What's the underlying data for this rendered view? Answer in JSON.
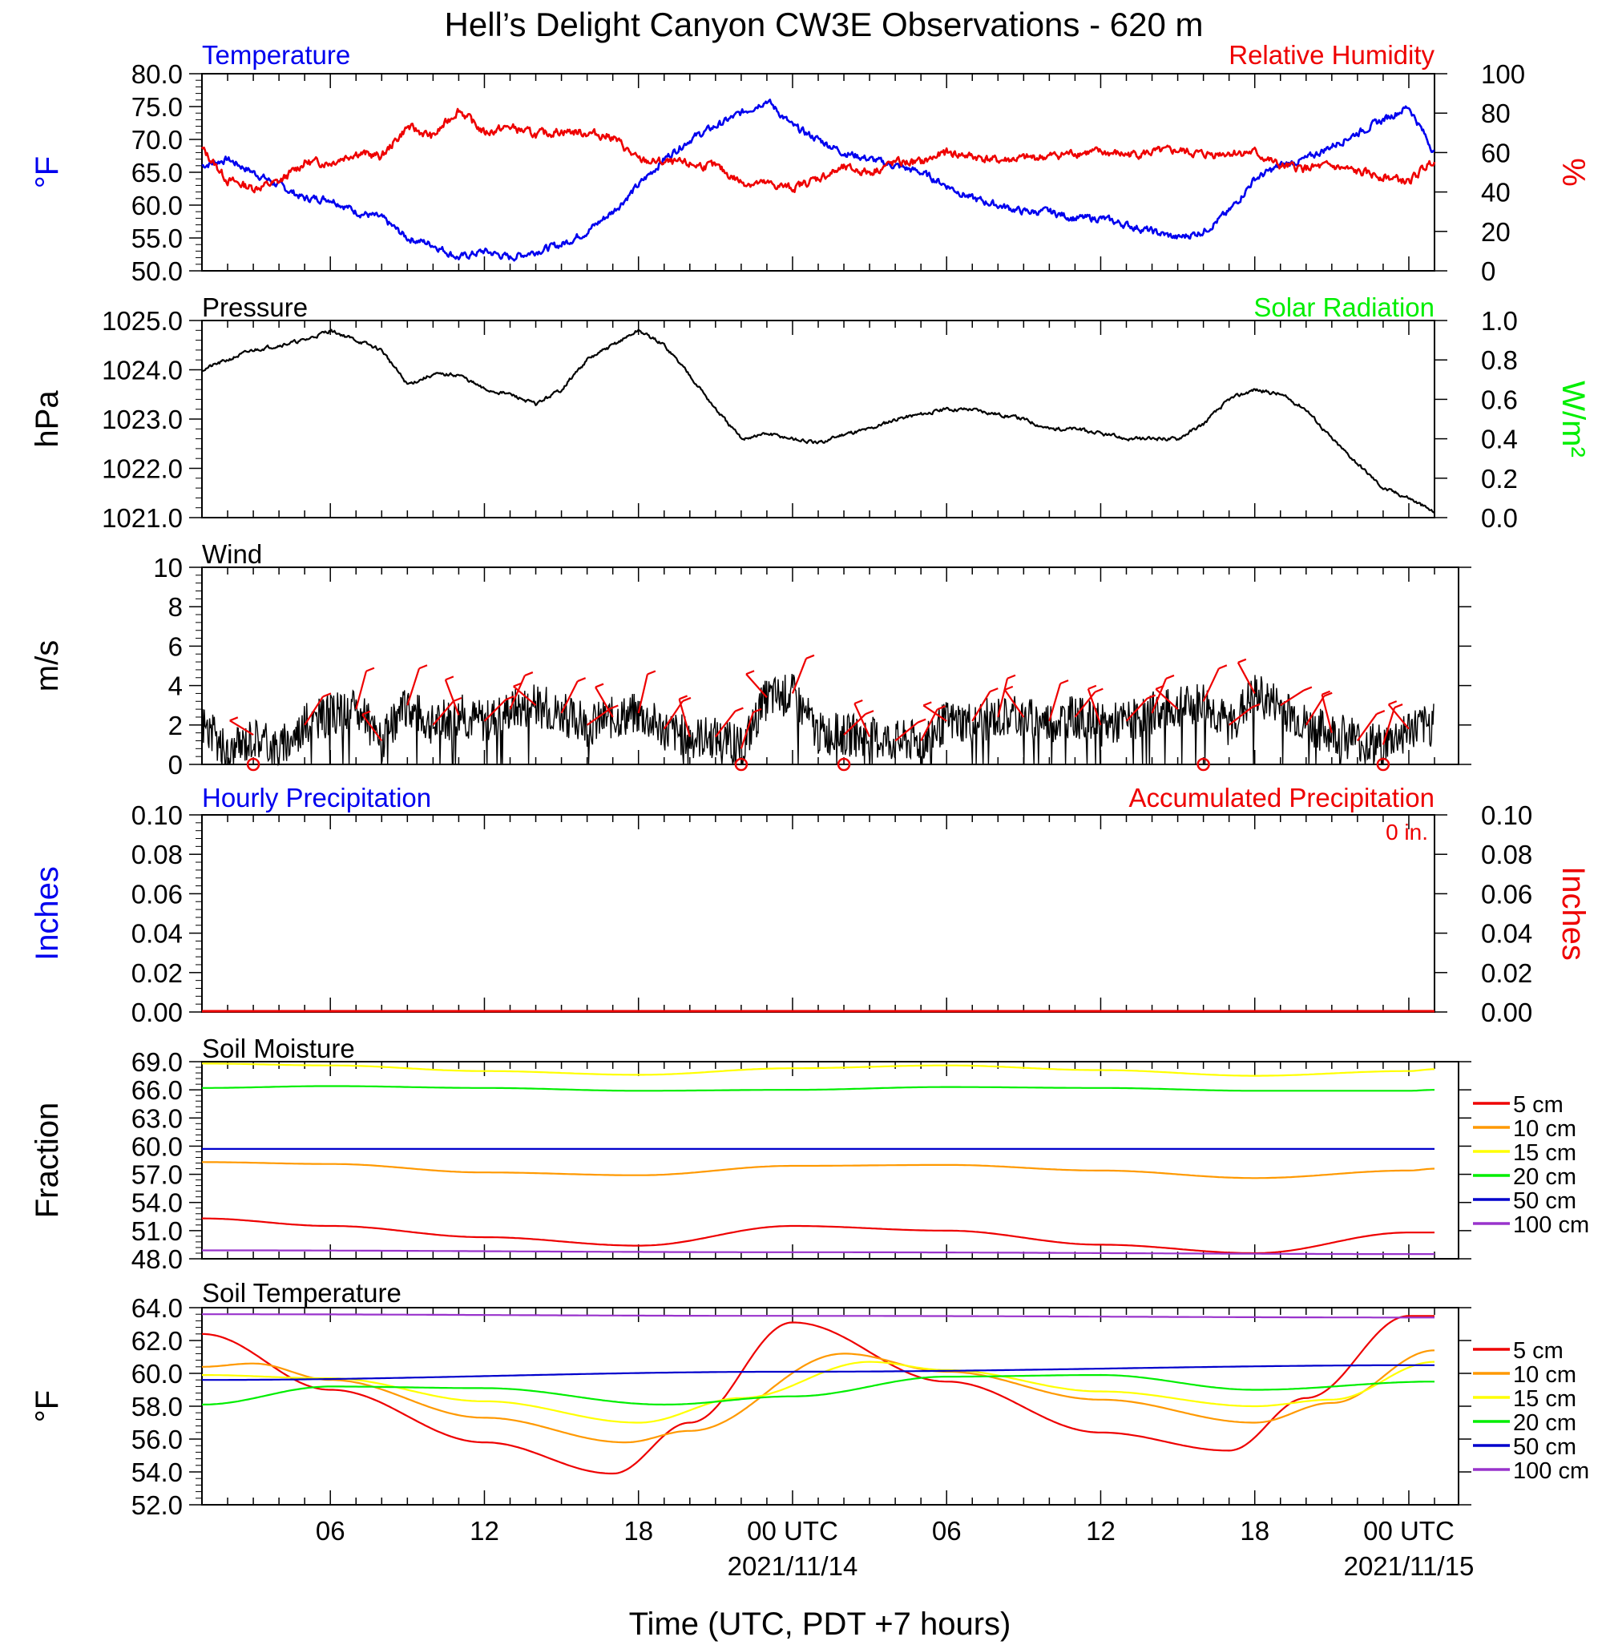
{
  "title": "Hell’s Delight Canyon CW3E Observations - 620 m",
  "x_axis": {
    "label": "Time (UTC, PDT +7 hours)",
    "ticks": [
      {
        "hour": 6,
        "label": "06",
        "date": ""
      },
      {
        "hour": 12,
        "label": "12",
        "date": ""
      },
      {
        "hour": 18,
        "label": "18",
        "date": ""
      },
      {
        "hour": 24,
        "label": "00 UTC",
        "date": "2021/11/14"
      },
      {
        "hour": 30,
        "label": "06",
        "date": ""
      },
      {
        "hour": 36,
        "label": "12",
        "date": ""
      },
      {
        "hour": 42,
        "label": "18",
        "date": ""
      },
      {
        "hour": 48,
        "label": "00 UTC",
        "date": "2021/11/15"
      }
    ],
    "range_hours": [
      1,
      49
    ]
  },
  "colors": {
    "temperature": "#0000ee",
    "humidity": "#ee0000",
    "pressure": "#000000",
    "solar": "#00ee00",
    "wind": "#000000",
    "barb": "#ee0000",
    "soil": {
      "5cm": "#ee0000",
      "10cm": "#ff9900",
      "15cm": "#ffff00",
      "20cm": "#00ee00",
      "50cm": "#0000cc",
      "100cm": "#9933cc"
    }
  },
  "chart_data": [
    {
      "type": "line",
      "panel": "temperature-humidity",
      "left_title": "Temperature",
      "right_title": "Relative Humidity",
      "ylabel": "°F",
      "y2label": "%",
      "ylim": [
        50,
        80
      ],
      "y2lim": [
        0,
        100
      ],
      "yticks": [
        "50.0",
        "55.0",
        "60.0",
        "65.0",
        "70.0",
        "75.0",
        "80.0"
      ],
      "y2ticks": [
        "0",
        "20",
        "40",
        "60",
        "80",
        "100"
      ],
      "series": [
        {
          "name": "Temperature",
          "axis": "left",
          "x": [
            1,
            2,
            3,
            4,
            5,
            6,
            7,
            8,
            9,
            10,
            11,
            12,
            13,
            14,
            15,
            16,
            17,
            18,
            19,
            20,
            21,
            22,
            23,
            24,
            25,
            26,
            27,
            28,
            29,
            30,
            31,
            32,
            33,
            34,
            35,
            36,
            37,
            38,
            39,
            40,
            41,
            42,
            43,
            44,
            45,
            46,
            47,
            48,
            49
          ],
          "y": [
            66,
            67,
            65,
            63,
            61,
            61,
            59,
            58,
            55,
            54,
            52,
            53,
            52,
            53,
            54,
            56,
            59,
            63,
            67,
            70,
            72,
            74,
            76,
            72,
            70,
            68,
            67,
            66,
            65,
            63,
            61,
            60,
            59,
            59,
            58,
            58,
            57,
            56,
            55,
            56,
            59,
            64,
            66,
            67,
            69,
            71,
            73,
            75,
            68
          ]
        },
        {
          "name": "Relative Humidity",
          "axis": "right",
          "x": [
            1,
            2,
            3,
            4,
            5,
            6,
            7,
            8,
            9,
            10,
            11,
            12,
            13,
            14,
            15,
            16,
            17,
            18,
            19,
            20,
            21,
            22,
            23,
            24,
            25,
            26,
            27,
            28,
            29,
            30,
            31,
            32,
            33,
            34,
            35,
            36,
            37,
            38,
            39,
            40,
            41,
            42,
            43,
            44,
            45,
            46,
            47,
            48,
            49
          ],
          "y": [
            62,
            46,
            42,
            45,
            55,
            55,
            60,
            58,
            73,
            68,
            82,
            70,
            73,
            69,
            71,
            70,
            68,
            56,
            55,
            54,
            53,
            45,
            44,
            42,
            47,
            52,
            50,
            55,
            55,
            60,
            58,
            56,
            57,
            58,
            60,
            60,
            59,
            60,
            61,
            59,
            60,
            60,
            53,
            52,
            53,
            50,
            48,
            45,
            57
          ]
        }
      ]
    },
    {
      "type": "line",
      "panel": "pressure",
      "left_title": "Pressure",
      "right_title": "Solar Radiation",
      "ylabel": "hPa",
      "y2label": "W/m²",
      "ylim": [
        1021,
        1025
      ],
      "y2lim": [
        0,
        1
      ],
      "yticks": [
        "1021.0",
        "1022.0",
        "1023.0",
        "1024.0",
        "1025.0"
      ],
      "y2ticks": [
        "0.0",
        "0.2",
        "0.4",
        "0.6",
        "0.8",
        "1.0"
      ],
      "series": [
        {
          "name": "Pressure",
          "axis": "left",
          "x": [
            1,
            2,
            3,
            4,
            5,
            6,
            7,
            8,
            9,
            10,
            11,
            12,
            13,
            14,
            15,
            16,
            17,
            18,
            19,
            20,
            21,
            22,
            23,
            24,
            25,
            26,
            27,
            28,
            29,
            30,
            31,
            32,
            33,
            34,
            35,
            36,
            37,
            38,
            39,
            40,
            41,
            42,
            43,
            44,
            45,
            46,
            47,
            48,
            49
          ],
          "y": [
            1024.0,
            1024.2,
            1024.4,
            1024.5,
            1024.6,
            1024.8,
            1024.6,
            1024.4,
            1023.7,
            1023.9,
            1023.9,
            1023.6,
            1023.5,
            1023.3,
            1023.6,
            1024.2,
            1024.5,
            1024.8,
            1024.5,
            1023.9,
            1023.2,
            1022.6,
            1022.7,
            1022.6,
            1022.5,
            1022.7,
            1022.8,
            1023.0,
            1023.1,
            1023.2,
            1023.2,
            1023.1,
            1023.0,
            1022.8,
            1022.8,
            1022.7,
            1022.6,
            1022.6,
            1022.6,
            1022.9,
            1023.4,
            1023.6,
            1023.5,
            1023.2,
            1022.6,
            1022.1,
            1021.6,
            1021.4,
            1021.1
          ]
        }
      ]
    },
    {
      "type": "line",
      "panel": "wind",
      "left_title": "Wind",
      "ylabel": "m/s",
      "ylim": [
        0,
        10
      ],
      "yticks": [
        "0",
        "2",
        "4",
        "6",
        "8",
        "10"
      ],
      "series": [
        {
          "name": "Wind speed",
          "axis": "left",
          "x": [
            1,
            2,
            3,
            4,
            5,
            6,
            7,
            8,
            9,
            10,
            11,
            12,
            13,
            14,
            15,
            16,
            17,
            18,
            19,
            20,
            21,
            22,
            23,
            24,
            25,
            26,
            27,
            28,
            29,
            30,
            31,
            32,
            33,
            34,
            35,
            36,
            37,
            38,
            39,
            40,
            41,
            42,
            43,
            44,
            45,
            46,
            47,
            48,
            49
          ],
          "y": [
            2.2,
            0.5,
            1.5,
            0.8,
            2.0,
            2.5,
            2.8,
            1.2,
            3.0,
            2.0,
            2.5,
            2.2,
            2.8,
            3.0,
            2.6,
            2.0,
            2.4,
            2.6,
            1.8,
            1.4,
            1.4,
            0.8,
            3.4,
            3.6,
            1.6,
            1.5,
            1.4,
            1.2,
            1.2,
            2.2,
            2.2,
            2.4,
            2.4,
            2.2,
            2.4,
            2.0,
            2.2,
            2.6,
            2.8,
            3.2,
            2.0,
            3.6,
            3.0,
            2.0,
            1.6,
            1.2,
            1.0,
            1.8,
            2.0
          ]
        }
      ],
      "barbs_x": [
        3,
        5,
        7,
        8,
        9,
        10,
        11,
        12,
        13,
        14,
        15,
        16,
        17,
        18,
        19,
        20,
        21,
        22,
        23,
        24,
        26,
        27,
        28,
        29,
        30,
        31,
        32,
        33,
        34,
        35,
        36,
        37,
        38,
        39,
        40,
        41,
        42,
        43,
        44,
        45,
        46,
        47,
        48
      ],
      "calm_x": [
        3,
        22,
        26,
        40,
        47
      ]
    },
    {
      "type": "line",
      "panel": "precipitation",
      "left_title": "Hourly Precipitation",
      "right_title": "Accumulated Precipitation",
      "accum_label": "0 in.",
      "ylabel": "Inches",
      "y2label": "Inches",
      "ylim": [
        0,
        0.1
      ],
      "y2lim": [
        0,
        0.1
      ],
      "yticks": [
        "0.00",
        "0.02",
        "0.04",
        "0.06",
        "0.08",
        "0.10"
      ],
      "y2ticks": [
        "0.00",
        "0.02",
        "0.04",
        "0.06",
        "0.08",
        "0.10"
      ],
      "series": [
        {
          "name": "Accumulated Precipitation",
          "axis": "left",
          "x": [
            1,
            49
          ],
          "y": [
            0,
            0
          ]
        }
      ]
    },
    {
      "type": "line",
      "panel": "soil-moisture",
      "left_title": "Soil Moisture",
      "ylabel": "Fraction",
      "ylim": [
        48,
        69
      ],
      "yticks": [
        "48.0",
        "51.0",
        "54.0",
        "57.0",
        "60.0",
        "63.0",
        "66.0",
        "69.0"
      ],
      "legend": "right",
      "series": [
        {
          "name": "5 cm",
          "x": [
            1,
            6,
            12,
            18,
            24,
            30,
            36,
            42,
            48,
            49
          ],
          "y": [
            52.3,
            51.5,
            50.3,
            49.4,
            51.5,
            51.0,
            49.5,
            48.6,
            50.8,
            50.8
          ]
        },
        {
          "name": "10 cm",
          "x": [
            1,
            6,
            12,
            18,
            24,
            30,
            36,
            42,
            48,
            49
          ],
          "y": [
            58.3,
            58.1,
            57.2,
            56.9,
            57.9,
            58.0,
            57.4,
            56.6,
            57.4,
            57.6
          ]
        },
        {
          "name": "15 cm",
          "x": [
            1,
            6,
            12,
            18,
            24,
            30,
            36,
            42,
            48,
            49
          ],
          "y": [
            68.8,
            68.6,
            68.0,
            67.6,
            68.3,
            68.6,
            68.1,
            67.5,
            68.0,
            68.2
          ]
        },
        {
          "name": "20 cm",
          "x": [
            1,
            6,
            12,
            18,
            24,
            30,
            36,
            42,
            48,
            49
          ],
          "y": [
            66.2,
            66.4,
            66.2,
            65.9,
            66.0,
            66.3,
            66.2,
            65.9,
            65.9,
            66.0
          ]
        },
        {
          "name": "50 cm",
          "x": [
            1,
            24,
            49
          ],
          "y": [
            59.7,
            59.7,
            59.7
          ]
        },
        {
          "name": "100 cm",
          "x": [
            1,
            24,
            49
          ],
          "y": [
            48.9,
            48.7,
            48.5
          ]
        }
      ]
    },
    {
      "type": "line",
      "panel": "soil-temperature",
      "left_title": "Soil Temperature",
      "ylabel": "°F",
      "ylim": [
        52,
        64
      ],
      "yticks": [
        "52.0",
        "54.0",
        "56.0",
        "58.0",
        "60.0",
        "62.0",
        "64.0"
      ],
      "legend": "right",
      "series": [
        {
          "name": "5 cm",
          "x": [
            1,
            6,
            12,
            17,
            20,
            24,
            30,
            36,
            41,
            44,
            48,
            49
          ],
          "y": [
            62.4,
            59.0,
            55.8,
            53.9,
            57.0,
            63.1,
            59.5,
            56.4,
            55.3,
            58.5,
            63.5,
            63.5
          ]
        },
        {
          "name": "10 cm",
          "x": [
            1,
            3,
            6,
            12,
            17.5,
            20,
            26,
            30,
            36,
            42,
            45,
            49
          ],
          "y": [
            60.4,
            60.6,
            59.6,
            57.3,
            55.8,
            56.5,
            61.2,
            60.1,
            58.4,
            57.0,
            58.2,
            61.4
          ]
        },
        {
          "name": "15 cm",
          "x": [
            1,
            6,
            12,
            18,
            22,
            27,
            30,
            36,
            42,
            45,
            49
          ],
          "y": [
            59.9,
            59.7,
            58.3,
            57.0,
            58.5,
            60.7,
            60.2,
            58.9,
            58.0,
            58.4,
            60.7
          ]
        },
        {
          "name": "20 cm",
          "x": [
            1,
            6,
            12,
            19,
            24,
            30,
            36,
            42,
            49
          ],
          "y": [
            58.1,
            59.2,
            59.1,
            58.1,
            58.6,
            59.8,
            59.9,
            59.0,
            59.5
          ]
        },
        {
          "name": "50 cm",
          "x": [
            1,
            24,
            49
          ],
          "y": [
            59.6,
            60.1,
            60.5
          ]
        },
        {
          "name": "100 cm",
          "x": [
            1,
            24,
            49
          ],
          "y": [
            63.6,
            63.5,
            63.4
          ]
        }
      ]
    }
  ]
}
